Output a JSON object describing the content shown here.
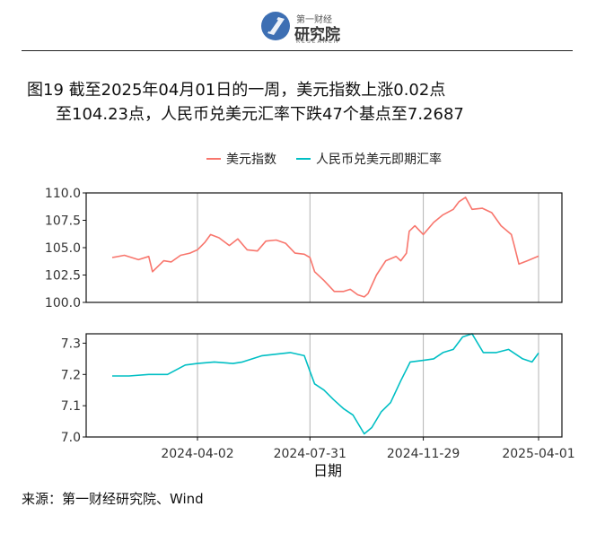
{
  "header": {
    "logo_top": "第一财经",
    "logo_main": "研究院",
    "logo_sub": "RESEARCH"
  },
  "figure": {
    "title_line1": "图19  截至2025年04月01日的一周，美元指数上涨0.02点",
    "title_line2": "至104.23点，人民币兑美元汇率下跌47个基点至7.2687",
    "source": "来源：第一财经研究院、Wind"
  },
  "chart_data": {
    "type": "line",
    "xlabel": "日期",
    "x_ticks": [
      "2024-04-02",
      "2024-07-31",
      "2024-11-29",
      "2025-04-01"
    ],
    "x_range": [
      "2024-01-02",
      "2025-04-01"
    ],
    "grid": "vertical lines at x ticks",
    "legend": {
      "placement": "top",
      "entries": [
        "美元指数",
        "人民币兑美元即期汇率"
      ]
    },
    "colors": {
      "usd_index": "#F8766D",
      "cny_rate": "#00BFC4"
    },
    "panels": [
      {
        "name": "美元指数",
        "ylim": [
          100.0,
          110.0
        ],
        "yticks": [
          "100.0",
          "102.5",
          "105.0",
          "107.5",
          "110.0"
        ],
        "series": [
          {
            "name": "美元指数",
            "x": [
              "2024-01-02",
              "2024-01-15",
              "2024-01-30",
              "2024-02-10",
              "2024-02-14",
              "2024-02-26",
              "2024-03-05",
              "2024-03-15",
              "2024-03-25",
              "2024-04-02",
              "2024-04-10",
              "2024-04-16",
              "2024-04-25",
              "2024-05-06",
              "2024-05-15",
              "2024-05-25",
              "2024-06-05",
              "2024-06-14",
              "2024-06-25",
              "2024-07-05",
              "2024-07-15",
              "2024-07-25",
              "2024-07-31",
              "2024-08-05",
              "2024-08-15",
              "2024-08-26",
              "2024-09-05",
              "2024-09-12",
              "2024-09-20",
              "2024-09-27",
              "2024-10-01",
              "2024-10-10",
              "2024-10-20",
              "2024-10-31",
              "2024-11-05",
              "2024-11-11",
              "2024-11-14",
              "2024-11-20",
              "2024-11-29",
              "2024-12-10",
              "2024-12-20",
              "2024-12-31",
              "2025-01-06",
              "2025-01-13",
              "2025-01-20",
              "2025-01-31",
              "2025-02-10",
              "2025-02-20",
              "2025-03-03",
              "2025-03-06",
              "2025-03-11",
              "2025-03-20",
              "2025-04-01"
            ],
            "values": [
              104.1,
              104.3,
              103.9,
              104.2,
              102.8,
              103.8,
              103.7,
              104.3,
              104.5,
              104.8,
              105.5,
              106.2,
              105.9,
              105.2,
              105.8,
              104.8,
              104.7,
              105.6,
              105.7,
              105.4,
              104.5,
              104.4,
              104.1,
              102.8,
              102.0,
              101.0,
              101.0,
              101.2,
              100.7,
              100.5,
              100.8,
              102.5,
              103.8,
              104.2,
              103.8,
              104.5,
              106.5,
              107.0,
              106.2,
              107.3,
              108.0,
              108.5,
              109.2,
              109.6,
              108.5,
              108.6,
              108.2,
              107.0,
              106.2,
              105.2,
              103.5,
              103.8,
              104.23
            ]
          }
        ]
      },
      {
        "name": "人民币兑美元即期汇率",
        "ylim": [
          7.0,
          7.33
        ],
        "yticks": [
          "7.0",
          "7.1",
          "7.2",
          "7.3"
        ],
        "series": [
          {
            "name": "人民币兑美元即期汇率",
            "x": [
              "2024-01-02",
              "2024-01-20",
              "2024-02-10",
              "2024-03-01",
              "2024-03-20",
              "2024-04-02",
              "2024-04-20",
              "2024-05-10",
              "2024-05-20",
              "2024-06-10",
              "2024-06-25",
              "2024-07-10",
              "2024-07-25",
              "2024-07-31",
              "2024-08-05",
              "2024-08-15",
              "2024-08-25",
              "2024-09-05",
              "2024-09-15",
              "2024-09-27",
              "2024-10-05",
              "2024-10-15",
              "2024-10-25",
              "2024-11-05",
              "2024-11-15",
              "2024-11-29",
              "2024-12-10",
              "2024-12-20",
              "2024-12-31",
              "2025-01-10",
              "2025-01-20",
              "2025-02-01",
              "2025-02-15",
              "2025-02-28",
              "2025-03-15",
              "2025-03-25",
              "2025-04-01"
            ],
            "values": [
              7.195,
              7.195,
              7.2,
              7.2,
              7.23,
              7.235,
              7.24,
              7.235,
              7.24,
              7.26,
              7.265,
              7.27,
              7.26,
              7.21,
              7.17,
              7.15,
              7.12,
              7.09,
              7.07,
              7.01,
              7.03,
              7.08,
              7.11,
              7.18,
              7.24,
              7.245,
              7.25,
              7.27,
              7.28,
              7.32,
              7.33,
              7.27,
              7.27,
              7.28,
              7.25,
              7.24,
              7.2687
            ]
          }
        ]
      }
    ]
  }
}
